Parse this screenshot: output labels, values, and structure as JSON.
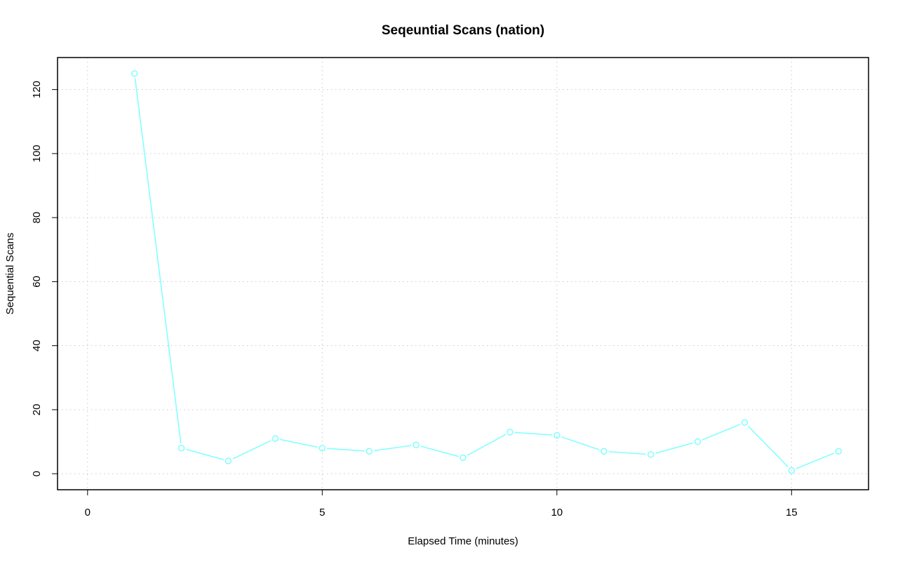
{
  "chart_data": {
    "type": "line",
    "title": "Seqeuntial Scans (nation)",
    "xlabel": "Elapsed Time (minutes)",
    "ylabel": "Sequential Scans",
    "xlim": [
      -0.64,
      16.64
    ],
    "ylim": [
      -5,
      130
    ],
    "x_ticks": [
      0,
      5,
      10,
      15
    ],
    "y_ticks": [
      0,
      20,
      40,
      60,
      80,
      100,
      120
    ],
    "grid": true,
    "legend": "none",
    "colors": {
      "series": "#7fffff",
      "grid": "#c8c8c8",
      "frame": "#000000"
    },
    "series": [
      {
        "x": [
          1,
          2,
          3,
          4,
          5,
          6,
          7,
          8,
          9,
          10,
          11,
          12,
          13,
          14,
          15,
          16
        ],
        "values": [
          125,
          8,
          4,
          11,
          8,
          7,
          9,
          5,
          13,
          12,
          7,
          6,
          10,
          16,
          1,
          7
        ]
      }
    ]
  }
}
